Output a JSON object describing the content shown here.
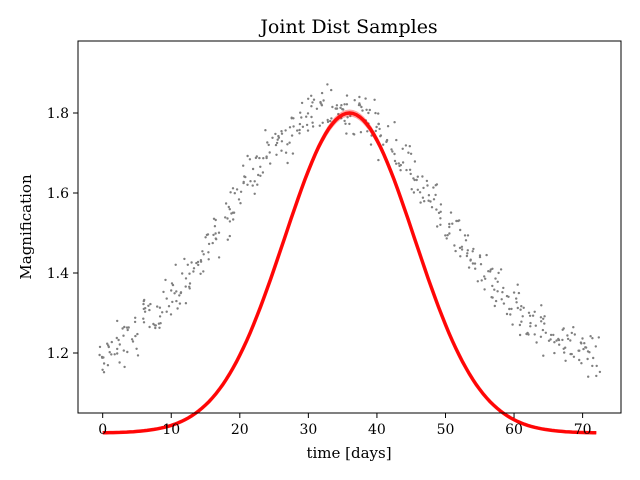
{
  "chart_data": {
    "type": "scatter",
    "title": "Joint Dist Samples",
    "xlabel": "time [days]",
    "ylabel": "Magnification",
    "xlim": [
      -3.6,
      75.6
    ],
    "ylim": [
      1.05,
      1.98
    ],
    "x_ticks": [
      0,
      10,
      20,
      30,
      40,
      50,
      60,
      70
    ],
    "x_tick_labels": [
      "0",
      "10",
      "20",
      "30",
      "40",
      "50",
      "60",
      "70"
    ],
    "y_ticks": [
      1.2,
      1.4,
      1.6,
      1.8
    ],
    "y_tick_labels": [
      "1.2",
      "1.4",
      "1.6",
      "1.8"
    ],
    "grid": false,
    "legend": "none",
    "colors": {
      "points": "#7f7f7f",
      "model": "#ff0000"
    },
    "series": [
      {
        "kind": "scatter",
        "x": [
          0.0,
          1.2,
          2.4,
          3.6,
          4.8,
          6.0,
          7.2,
          8.4,
          9.6,
          10.8,
          12.0,
          13.2,
          14.4,
          15.6,
          16.8,
          18.0,
          19.2,
          20.4,
          21.6,
          22.8,
          24.0,
          25.2,
          26.4,
          27.6,
          28.8,
          30.0,
          31.2,
          32.4,
          33.6,
          34.8,
          36.0,
          37.2,
          38.4,
          39.6,
          40.8,
          42.0,
          43.2,
          44.4,
          45.6,
          46.8,
          48.0,
          49.2,
          50.4,
          51.6,
          52.8,
          54.0,
          55.2,
          56.4,
          57.6,
          58.8,
          60.0,
          61.2,
          62.4,
          63.6,
          64.8,
          66.0,
          67.2,
          68.4,
          69.6,
          70.8,
          72.0
        ],
        "y": [
          1.19,
          1.21,
          1.22,
          1.24,
          1.26,
          1.28,
          1.3,
          1.31,
          1.34,
          1.36,
          1.38,
          1.41,
          1.44,
          1.47,
          1.51,
          1.54,
          1.58,
          1.62,
          1.64,
          1.68,
          1.7,
          1.73,
          1.74,
          1.76,
          1.78,
          1.79,
          1.8,
          1.81,
          1.82,
          1.8,
          1.8,
          1.81,
          1.79,
          1.77,
          1.75,
          1.73,
          1.7,
          1.69,
          1.64,
          1.62,
          1.59,
          1.56,
          1.53,
          1.5,
          1.47,
          1.43,
          1.41,
          1.38,
          1.36,
          1.34,
          1.32,
          1.3,
          1.28,
          1.27,
          1.26,
          1.25,
          1.23,
          1.22,
          1.21,
          1.2,
          1.19
        ]
      },
      {
        "kind": "line",
        "model": {
          "x0": 36,
          "a": 1.8,
          "b": 1.0,
          "tau": 0.48,
          "u0": 0.7
        }
      }
    ]
  }
}
